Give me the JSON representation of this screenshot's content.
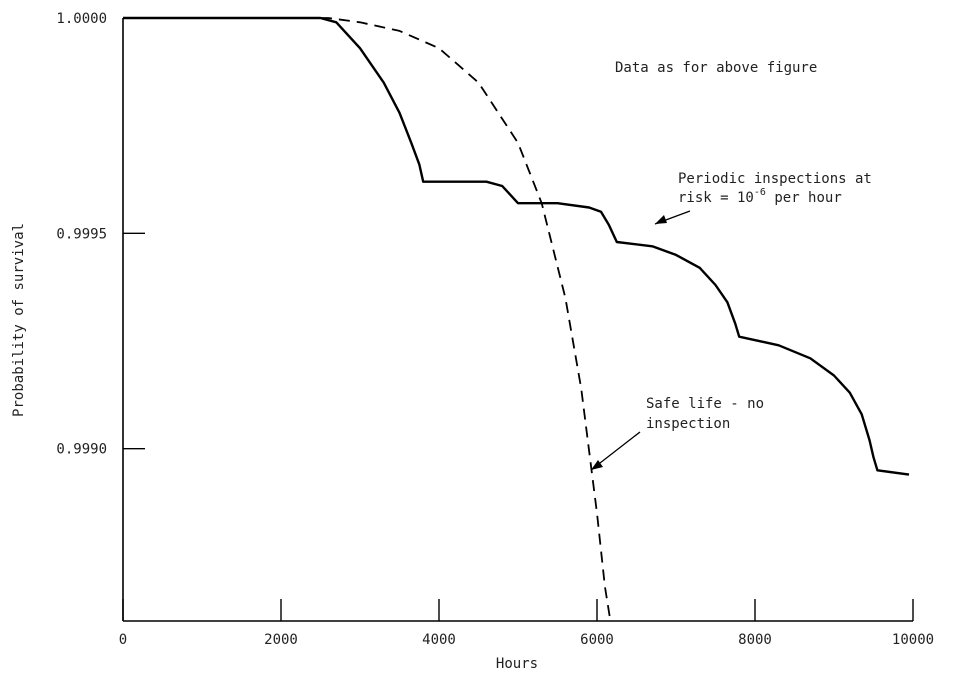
{
  "chart_data": {
    "type": "line",
    "title": "",
    "xlabel": "Hours",
    "ylabel": "Probability of survival",
    "xlim": [
      0,
      10000
    ],
    "ylim": [
      0.9986,
      1.0
    ],
    "x_ticks": [
      0,
      2000,
      4000,
      6000,
      8000,
      10000
    ],
    "x_tick_labels": [
      "0",
      "2000",
      "4000",
      "6000",
      "8000",
      "10000"
    ],
    "y_ticks": [
      0.999,
      0.9995,
      1.0
    ],
    "y_tick_labels": [
      "0.9990",
      "0.9995",
      "1.0000"
    ],
    "grid": false,
    "series": [
      {
        "name": "Periodic inspections at risk = 10-6 per hour",
        "style": "solid",
        "color": "#000000",
        "x": [
          0,
          1000,
          2000,
          2500,
          2700,
          3000,
          3300,
          3500,
          3650,
          3750,
          3800,
          4200,
          4600,
          4800,
          4900,
          5000,
          5500,
          5900,
          6050,
          6150,
          6250,
          6700,
          7000,
          7300,
          7500,
          7650,
          7750,
          7800,
          8300,
          8700,
          9000,
          9200,
          9350,
          9450,
          9500,
          9550,
          9950
        ],
        "y": [
          1.0,
          1.0,
          1.0,
          1.0,
          0.99999,
          0.99993,
          0.99985,
          0.99978,
          0.99971,
          0.99966,
          0.99962,
          0.99962,
          0.99962,
          0.99961,
          0.99959,
          0.99957,
          0.99957,
          0.99956,
          0.99955,
          0.99952,
          0.99948,
          0.99947,
          0.99945,
          0.99942,
          0.99938,
          0.99934,
          0.99929,
          0.99926,
          0.99924,
          0.99921,
          0.99917,
          0.99913,
          0.99908,
          0.99902,
          0.99898,
          0.99895,
          0.99894
        ]
      },
      {
        "name": "Safe life - no inspection",
        "style": "dashed",
        "color": "#000000",
        "x": [
          0,
          2000,
          2600,
          3000,
          3500,
          4000,
          4500,
          5000,
          5300,
          5600,
          5800,
          6000,
          6100,
          6170
        ],
        "y": [
          1.0,
          1.0,
          1.0,
          0.99999,
          0.99997,
          0.99993,
          0.99985,
          0.99971,
          0.99957,
          0.99935,
          0.99914,
          0.99885,
          0.99868,
          0.9986
        ]
      }
    ],
    "annotations": [
      {
        "text": "Data as for above figure",
        "at": [
          6200,
          0.99988
        ]
      },
      {
        "line1": "Periodic inspections at",
        "line2_pre": "risk = 10",
        "line2_sup": "-6",
        "line2_post": " per hour",
        "target": [
          6300,
          0.99948
        ]
      },
      {
        "line1": "Safe life - no",
        "line2": "inspection",
        "target": [
          5930,
          0.99888
        ]
      }
    ]
  }
}
